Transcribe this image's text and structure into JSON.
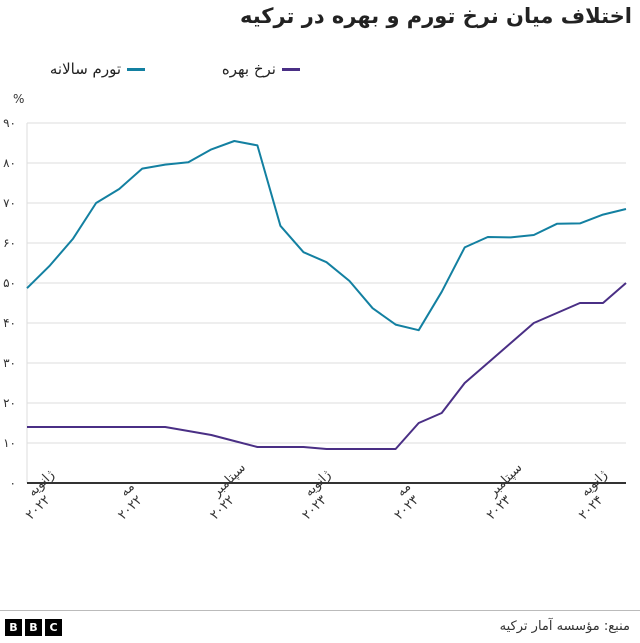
{
  "title": "اختلاف میان نرخ تورم و بهره در ترکیه",
  "legend": {
    "inflation": {
      "label": "تورم سالانه",
      "color": "#1380a1"
    },
    "interest": {
      "label": "نرخ بهره",
      "color": "#4a2f85"
    }
  },
  "unit_label": "%",
  "footer": {
    "source": "منبع: مؤسسه آمار ترکیه",
    "logo_letters": [
      "B",
      "B",
      "C"
    ]
  },
  "chart_data": {
    "type": "line",
    "title": "اختلاف میان نرخ تورم و بهره در ترکیه",
    "xlabel": "",
    "ylabel": "%",
    "ylim": [
      0,
      90
    ],
    "yticks": [
      0,
      10,
      20,
      30,
      40,
      50,
      60,
      70,
      80,
      90
    ],
    "ytick_labels": [
      "۰",
      "۱۰",
      "۲۰",
      "۳۰",
      "۴۰",
      "۵۰",
      "۶۰",
      "۷۰",
      "۸۰",
      "۹۰"
    ],
    "grid": true,
    "legend_position": "top",
    "x": [
      "2022-01",
      "2022-02",
      "2022-03",
      "2022-04",
      "2022-05",
      "2022-06",
      "2022-07",
      "2022-08",
      "2022-09",
      "2022-10",
      "2022-11",
      "2022-12",
      "2023-01",
      "2023-02",
      "2023-03",
      "2023-04",
      "2023-05",
      "2023-06",
      "2023-07",
      "2023-08",
      "2023-09",
      "2023-10",
      "2023-11",
      "2023-12",
      "2024-01",
      "2024-02",
      "2024-03"
    ],
    "xtick_labels": [
      {
        "index": 0,
        "line1": "ژانویه",
        "line2": "۲۰۲۲"
      },
      {
        "index": 4,
        "line1": "مه",
        "line2": "۲۰۲۲"
      },
      {
        "index": 8,
        "line1": "سپتامبر",
        "line2": "۲۰۲۲"
      },
      {
        "index": 12,
        "line1": "ژانویه",
        "line2": "۲۰۲۳"
      },
      {
        "index": 16,
        "line1": "مه",
        "line2": "۲۰۲۳"
      },
      {
        "index": 20,
        "line1": "سپتامبر",
        "line2": "۲۰۲۳"
      },
      {
        "index": 24,
        "line1": "ژانویه",
        "line2": "۲۰۲۴"
      }
    ],
    "series": [
      {
        "name": "تورم سالانه",
        "color": "#1380a1",
        "values": [
          48.7,
          54.4,
          61.1,
          70.0,
          73.5,
          78.6,
          79.6,
          80.2,
          83.4,
          85.5,
          84.4,
          64.3,
          57.7,
          55.2,
          50.5,
          43.7,
          39.6,
          38.2,
          47.8,
          58.9,
          61.5,
          61.4,
          62.0,
          64.8,
          64.9,
          67.1,
          68.5
        ]
      },
      {
        "name": "نرخ بهره",
        "color": "#4a2f85",
        "values": [
          14,
          14,
          14,
          14,
          14,
          14,
          14,
          13,
          12,
          10.5,
          9,
          9,
          9,
          8.5,
          8.5,
          8.5,
          8.5,
          15,
          17.5,
          25,
          30,
          35,
          40,
          42.5,
          45,
          45,
          50
        ]
      }
    ]
  }
}
